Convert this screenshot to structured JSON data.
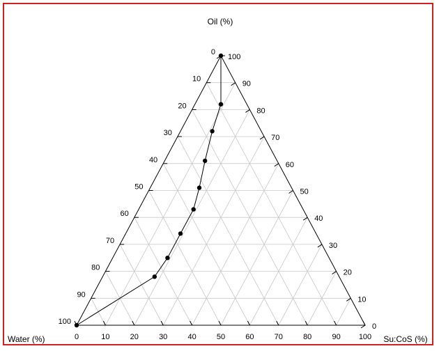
{
  "chart_data": {
    "type": "scatter",
    "subtype": "ternary",
    "axes": {
      "top": "Oil (%)",
      "left": "Water (%)",
      "right": "Su:CoS (%)"
    },
    "range": [
      0,
      100
    ],
    "ticks": [
      0,
      10,
      20,
      30,
      40,
      50,
      60,
      70,
      80,
      90,
      100
    ],
    "grid": true,
    "line_connected": true,
    "colors": {
      "frame": "#d02020",
      "grid": "#c8c8c8",
      "line": "#000000",
      "marker": "#000000"
    },
    "points": [
      {
        "oil": 100,
        "water": 0,
        "sucos": 0
      },
      {
        "oil": 82,
        "water": 9,
        "sucos": 9
      },
      {
        "oil": 72,
        "water": 17,
        "sucos": 11
      },
      {
        "oil": 61,
        "water": 25,
        "sucos": 14
      },
      {
        "oil": 51,
        "water": 32,
        "sucos": 17
      },
      {
        "oil": 43,
        "water": 38,
        "sucos": 19
      },
      {
        "oil": 34,
        "water": 47,
        "sucos": 19
      },
      {
        "oil": 25,
        "water": 56,
        "sucos": 19
      },
      {
        "oil": 18,
        "water": 64,
        "sucos": 18
      },
      {
        "oil": 0,
        "water": 100,
        "sucos": 0
      }
    ]
  }
}
